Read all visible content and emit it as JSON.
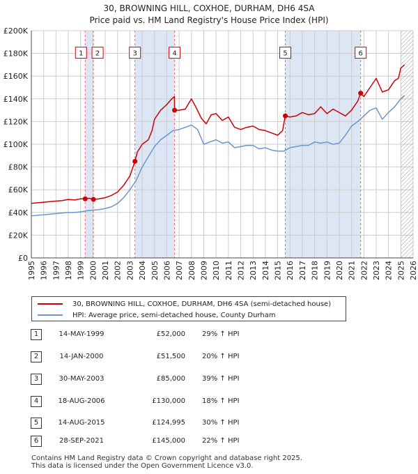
{
  "title": {
    "line1": "30, BROWNING HILL, COXHOE, DURHAM, DH6 4SA",
    "line2": "Price paid vs. HM Land Registry's House Price Index (HPI)"
  },
  "colors": {
    "property": "#cc0000",
    "hpi": "#6a96cc",
    "band": "#dde6f5",
    "marker_line": "#e07070",
    "grid": "#cccccc"
  },
  "chart_data": {
    "type": "line",
    "xlim": [
      1995,
      2026
    ],
    "ylim": [
      0,
      200000
    ],
    "y_ticks": [
      0,
      20000,
      40000,
      60000,
      80000,
      100000,
      120000,
      140000,
      160000,
      180000,
      200000
    ],
    "y_tick_labels": [
      "£0",
      "£20K",
      "£40K",
      "£60K",
      "£80K",
      "£100K",
      "£120K",
      "£140K",
      "£160K",
      "£180K",
      "£200K"
    ],
    "x_tick_labels": [
      "1995",
      "1996",
      "1997",
      "1998",
      "1999",
      "2000",
      "2001",
      "2002",
      "2003",
      "2004",
      "2005",
      "2006",
      "2007",
      "2008",
      "2009",
      "2010",
      "2011",
      "2012",
      "2013",
      "2014",
      "2015",
      "2016",
      "2017",
      "2018",
      "2019",
      "2020",
      "2021",
      "2022",
      "2023",
      "2024",
      "2025",
      "2026"
    ],
    "shaded_ranges": [
      [
        1999.37,
        2000.04
      ],
      [
        2003.41,
        2006.63
      ],
      [
        2015.62,
        2021.74
      ]
    ],
    "future_hatch_from": 2025.0,
    "series": [
      {
        "name": "30, BROWNING HILL, COXHOE, DURHAM, DH6 4SA (semi-detached house)",
        "x": [
          1995.0,
          1995.5,
          1996.0,
          1996.5,
          1997.0,
          1997.5,
          1998.0,
          1998.5,
          1999.0,
          1999.37,
          1999.7,
          2000.04,
          2000.5,
          2001.0,
          2001.5,
          2002.0,
          2002.5,
          2003.0,
          2003.41,
          2003.6,
          2004.0,
          2004.5,
          2004.8,
          2005.0,
          2005.5,
          2006.0,
          2006.4,
          2006.62,
          2006.63,
          2007.0,
          2007.5,
          2008.0,
          2008.3,
          2008.8,
          2009.2,
          2009.6,
          2010.0,
          2010.5,
          2011.0,
          2011.5,
          2012.0,
          2012.5,
          2013.0,
          2013.5,
          2014.0,
          2014.5,
          2015.0,
          2015.4,
          2015.62,
          2016.0,
          2016.5,
          2017.0,
          2017.5,
          2018.0,
          2018.5,
          2019.0,
          2019.5,
          2020.0,
          2020.5,
          2021.0,
          2021.5,
          2021.74,
          2022.0,
          2022.5,
          2023.0,
          2023.5,
          2024.0,
          2024.5,
          2024.8,
          2025.0,
          2025.3
        ],
        "values": [
          48000,
          48500,
          49000,
          49500,
          50000,
          50500,
          51500,
          51000,
          52000,
          52000,
          52500,
          51500,
          52000,
          53000,
          55000,
          58000,
          64000,
          72000,
          85000,
          93000,
          100000,
          104000,
          112000,
          122000,
          130000,
          135000,
          140000,
          142000,
          130000,
          130000,
          131000,
          140000,
          134000,
          123000,
          118000,
          126000,
          127000,
          121000,
          124000,
          115000,
          113000,
          115000,
          116000,
          113000,
          112000,
          110000,
          108000,
          112000,
          124995,
          124000,
          125000,
          128000,
          126000,
          127000,
          133000,
          127000,
          131000,
          128000,
          125000,
          130000,
          138000,
          145000,
          142000,
          150000,
          158000,
          146000,
          148000,
          156000,
          158000,
          167000,
          170000
        ]
      },
      {
        "name": "HPI: Average price, semi-detached house, County Durham",
        "x": [
          1995.0,
          1995.5,
          1996.0,
          1996.5,
          1997.0,
          1997.5,
          1998.0,
          1998.5,
          1999.0,
          1999.5,
          2000.0,
          2000.5,
          2001.0,
          2001.5,
          2002.0,
          2002.5,
          2003.0,
          2003.5,
          2004.0,
          2004.5,
          2005.0,
          2005.5,
          2006.0,
          2006.5,
          2007.0,
          2007.5,
          2008.0,
          2008.5,
          2009.0,
          2009.5,
          2010.0,
          2010.5,
          2011.0,
          2011.5,
          2012.0,
          2012.5,
          2013.0,
          2013.5,
          2014.0,
          2014.5,
          2015.0,
          2015.5,
          2016.0,
          2016.5,
          2017.0,
          2017.5,
          2018.0,
          2018.5,
          2019.0,
          2019.5,
          2020.0,
          2020.5,
          2021.0,
          2021.5,
          2022.0,
          2022.5,
          2023.0,
          2023.5,
          2024.0,
          2024.5,
          2025.0,
          2025.3
        ],
        "values": [
          37000,
          37500,
          38000,
          38500,
          39000,
          39500,
          40000,
          40000,
          40500,
          41500,
          42000,
          42500,
          43500,
          45000,
          48000,
          53000,
          60000,
          68000,
          80000,
          89000,
          98000,
          104000,
          108000,
          112000,
          113000,
          115000,
          117000,
          113000,
          100000,
          102000,
          104000,
          101000,
          102000,
          97000,
          98000,
          99000,
          99000,
          96000,
          97000,
          95000,
          94000,
          94000,
          97000,
          98000,
          99000,
          99000,
          102000,
          101000,
          102000,
          100000,
          101000,
          108000,
          116000,
          120000,
          125000,
          130000,
          132000,
          122000,
          128000,
          133000,
          140000,
          143000
        ]
      }
    ],
    "sales": [
      {
        "id": "1",
        "x": 1999.37,
        "value": 52000
      },
      {
        "id": "2",
        "x": 2000.04,
        "value": 51500
      },
      {
        "id": "3",
        "x": 2003.41,
        "value": 85000
      },
      {
        "id": "4",
        "x": 2006.63,
        "value": 130000
      },
      {
        "id": "5",
        "x": 2015.62,
        "value": 124995
      },
      {
        "id": "6",
        "x": 2021.74,
        "value": 145000
      }
    ]
  },
  "legend": {
    "property": "30, BROWNING HILL, COXHOE, DURHAM, DH6 4SA (semi-detached house)",
    "hpi": "HPI: Average price, semi-detached house, County Durham"
  },
  "transactions": [
    {
      "id": "1",
      "date": "14-MAY-1999",
      "price": "£52,000",
      "hpi": "29% ↑ HPI"
    },
    {
      "id": "2",
      "date": "14-JAN-2000",
      "price": "£51,500",
      "hpi": "20% ↑ HPI"
    },
    {
      "id": "3",
      "date": "30-MAY-2003",
      "price": "£85,000",
      "hpi": "39% ↑ HPI"
    },
    {
      "id": "4",
      "date": "18-AUG-2006",
      "price": "£130,000",
      "hpi": "18% ↑ HPI"
    },
    {
      "id": "5",
      "date": "14-AUG-2015",
      "price": "£124,995",
      "hpi": "30% ↑ HPI"
    },
    {
      "id": "6",
      "date": "28-SEP-2021",
      "price": "£145,000",
      "hpi": "22% ↑ HPI"
    }
  ],
  "footer": {
    "line1": "Contains HM Land Registry data © Crown copyright and database right 2025.",
    "line2": "This data is licensed under the Open Government Licence v3.0."
  }
}
